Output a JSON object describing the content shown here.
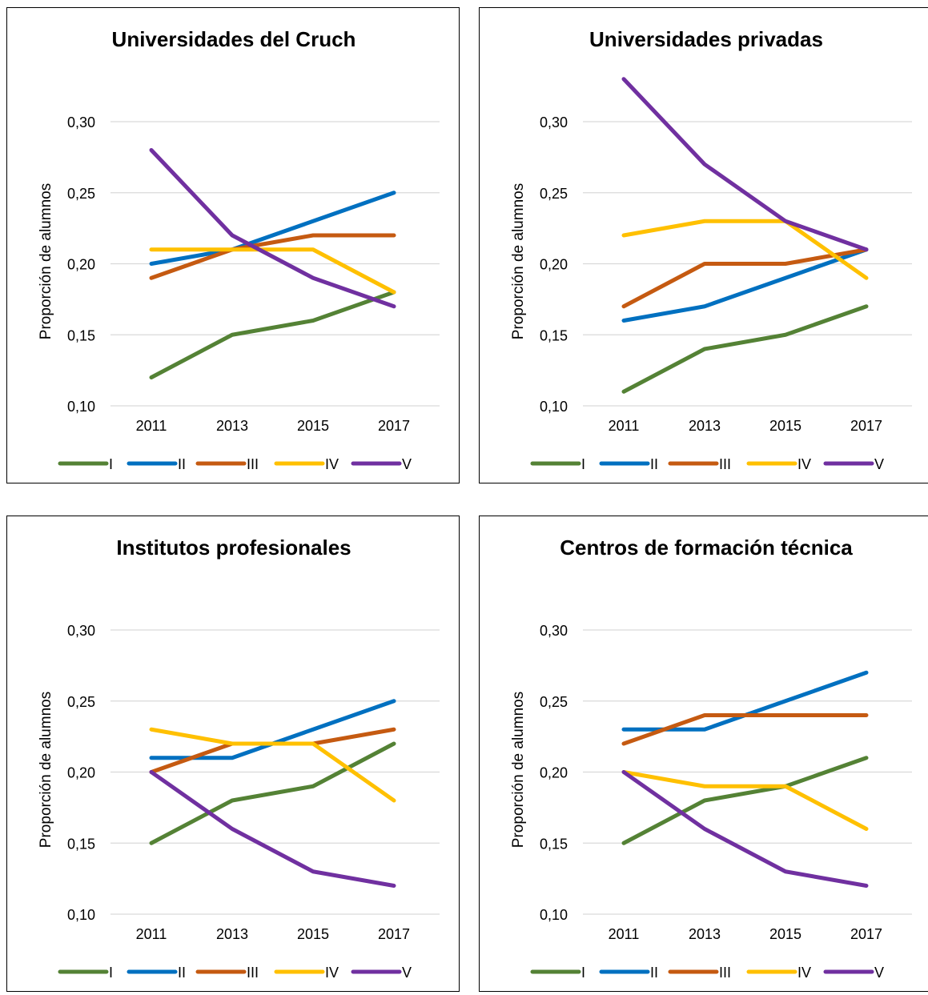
{
  "colors": {
    "I": "#548235",
    "II": "#0070C0",
    "III": "#C55A11",
    "IV": "#FFC000",
    "V": "#7030A0",
    "grid": "#D9D9D9",
    "text": "#000000"
  },
  "chart_data": [
    {
      "type": "line",
      "title": "Universidades del Cruch",
      "xlabel": "",
      "ylabel": "Proporción de alumnos",
      "categories": [
        "2011",
        "2013",
        "2015",
        "2017"
      ],
      "ylim": [
        0.1,
        0.3
      ],
      "yticks": [
        "0,10",
        "0,15",
        "0,20",
        "0,25",
        "0,30"
      ],
      "grid": true,
      "legend_position": "bottom",
      "series": [
        {
          "name": "I",
          "values": [
            0.12,
            0.15,
            0.16,
            0.18
          ]
        },
        {
          "name": "II",
          "values": [
            0.2,
            0.21,
            0.23,
            0.25
          ]
        },
        {
          "name": "III",
          "values": [
            0.19,
            0.21,
            0.22,
            0.22
          ]
        },
        {
          "name": "IV",
          "values": [
            0.21,
            0.21,
            0.21,
            0.18
          ]
        },
        {
          "name": "V",
          "values": [
            0.28,
            0.22,
            0.19,
            0.17
          ]
        }
      ]
    },
    {
      "type": "line",
      "title": "Universidades privadas",
      "xlabel": "",
      "ylabel": "Proporción de alumnos",
      "categories": [
        "2011",
        "2013",
        "2015",
        "2017"
      ],
      "ylim": [
        0.1,
        0.3
      ],
      "yticks": [
        "0,10",
        "0,15",
        "0,20",
        "0,25",
        "0,30"
      ],
      "grid": true,
      "legend_position": "bottom",
      "series": [
        {
          "name": "I",
          "values": [
            0.11,
            0.14,
            0.15,
            0.17
          ]
        },
        {
          "name": "II",
          "values": [
            0.16,
            0.17,
            0.19,
            0.21
          ]
        },
        {
          "name": "III",
          "values": [
            0.17,
            0.2,
            0.2,
            0.21
          ]
        },
        {
          "name": "IV",
          "values": [
            0.22,
            0.23,
            0.23,
            0.19
          ]
        },
        {
          "name": "V",
          "values": [
            0.33,
            0.27,
            0.23,
            0.21
          ]
        }
      ]
    },
    {
      "type": "line",
      "title": "Institutos profesionales",
      "xlabel": "",
      "ylabel": "Proporción de alumnos",
      "categories": [
        "2011",
        "2013",
        "2015",
        "2017"
      ],
      "ylim": [
        0.1,
        0.3
      ],
      "yticks": [
        "0,10",
        "0,15",
        "0,20",
        "0,25",
        "0,30"
      ],
      "grid": true,
      "legend_position": "bottom",
      "series": [
        {
          "name": "I",
          "values": [
            0.15,
            0.18,
            0.19,
            0.22
          ]
        },
        {
          "name": "II",
          "values": [
            0.21,
            0.21,
            0.23,
            0.25
          ]
        },
        {
          "name": "III",
          "values": [
            0.2,
            0.22,
            0.22,
            0.23
          ]
        },
        {
          "name": "IV",
          "values": [
            0.23,
            0.22,
            0.22,
            0.18
          ]
        },
        {
          "name": "V",
          "values": [
            0.2,
            0.16,
            0.13,
            0.12
          ]
        }
      ]
    },
    {
      "type": "line",
      "title": "Centros de formación técnica",
      "xlabel": "",
      "ylabel": "Proporción de alumnos",
      "categories": [
        "2011",
        "2013",
        "2015",
        "2017"
      ],
      "ylim": [
        0.1,
        0.3
      ],
      "yticks": [
        "0,10",
        "0,15",
        "0,20",
        "0,25",
        "0,30"
      ],
      "grid": true,
      "legend_position": "bottom",
      "series": [
        {
          "name": "I",
          "values": [
            0.15,
            0.18,
            0.19,
            0.21
          ]
        },
        {
          "name": "II",
          "values": [
            0.23,
            0.23,
            0.25,
            0.27
          ]
        },
        {
          "name": "III",
          "values": [
            0.22,
            0.24,
            0.24,
            0.24
          ]
        },
        {
          "name": "IV",
          "values": [
            0.2,
            0.19,
            0.19,
            0.16
          ]
        },
        {
          "name": "V",
          "values": [
            0.2,
            0.16,
            0.13,
            0.12
          ]
        }
      ]
    }
  ]
}
